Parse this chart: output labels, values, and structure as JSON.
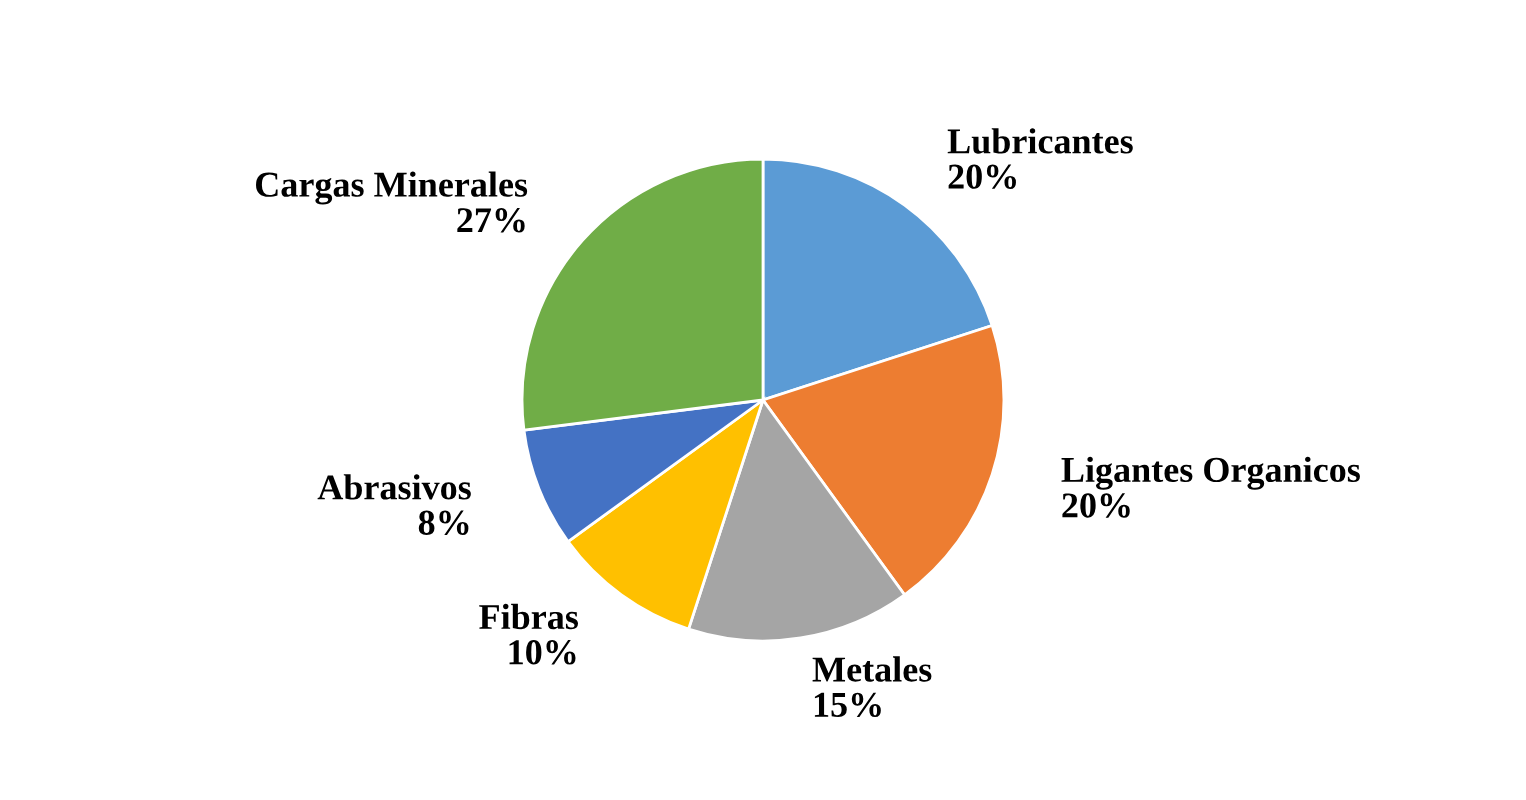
{
  "chart_data": {
    "type": "pie",
    "categories": [
      "Lubricantes",
      "Ligantes Organicos",
      "Metales",
      "Fibras",
      "Abrasivos",
      "Cargas Minerales"
    ],
    "values": [
      20,
      20,
      15,
      10,
      8,
      27
    ],
    "value_labels": [
      "20%",
      "20%",
      "15%",
      "10%",
      "8%",
      "27%"
    ],
    "colors": [
      "#5b9bd5",
      "#ed7d31",
      "#a5a5a5",
      "#ffc000",
      "#4472c4",
      "#70ad47"
    ],
    "legend": false
  }
}
